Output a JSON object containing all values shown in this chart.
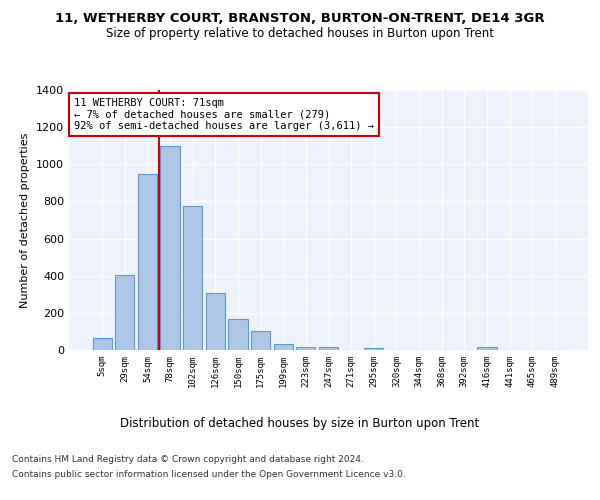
{
  "title": "11, WETHERBY COURT, BRANSTON, BURTON-ON-TRENT, DE14 3GR",
  "subtitle": "Size of property relative to detached houses in Burton upon Trent",
  "xlabel": "Distribution of detached houses by size in Burton upon Trent",
  "ylabel": "Number of detached properties",
  "bar_color": "#aec6e8",
  "bar_edge_color": "#5b9bd5",
  "background_color": "#eef3fb",
  "grid_color": "#ffffff",
  "categories": [
    "5sqm",
    "29sqm",
    "54sqm",
    "78sqm",
    "102sqm",
    "126sqm",
    "150sqm",
    "175sqm",
    "199sqm",
    "223sqm",
    "247sqm",
    "271sqm",
    "295sqm",
    "320sqm",
    "344sqm",
    "368sqm",
    "392sqm",
    "416sqm",
    "441sqm",
    "465sqm",
    "489sqm"
  ],
  "values": [
    65,
    405,
    945,
    1100,
    775,
    305,
    165,
    100,
    35,
    15,
    15,
    0,
    10,
    0,
    0,
    0,
    0,
    15,
    0,
    0,
    0
  ],
  "ylim": [
    0,
    1400
  ],
  "yticks": [
    0,
    200,
    400,
    600,
    800,
    1000,
    1200,
    1400
  ],
  "property_line_x": 2.5,
  "annotation_text": "11 WETHERBY COURT: 71sqm\n← 7% of detached houses are smaller (279)\n92% of semi-detached houses are larger (3,611) →",
  "annotation_box_color": "#ffffff",
  "annotation_border_color": "#cc0000",
  "property_line_color": "#cc0000",
  "footer_line1": "Contains HM Land Registry data © Crown copyright and database right 2024.",
  "footer_line2": "Contains public sector information licensed under the Open Government Licence v3.0."
}
